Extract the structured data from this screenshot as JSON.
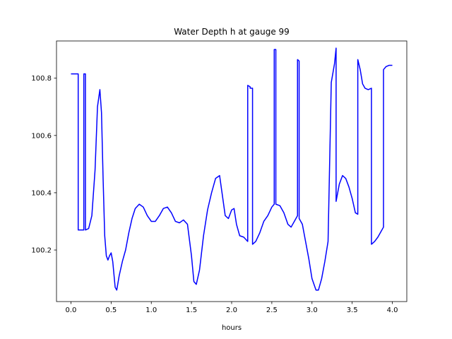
{
  "chart_data": {
    "type": "line",
    "title": "Water Depth h at gauge 99",
    "xlabel": "hours",
    "ylabel": "",
    "xlim": [
      -0.18,
      4.18
    ],
    "ylim": [
      100.02,
      100.93
    ],
    "xticks": [
      0.0,
      0.5,
      1.0,
      1.5,
      2.0,
      2.5,
      3.0,
      3.5,
      4.0
    ],
    "xtick_labels": [
      "0.0",
      "0.5",
      "1.0",
      "1.5",
      "2.0",
      "2.5",
      "3.0",
      "3.5",
      "4.0"
    ],
    "yticks": [
      100.2,
      100.4,
      100.6,
      100.8
    ],
    "ytick_labels": [
      "100.2",
      "100.4",
      "100.6",
      "100.8"
    ],
    "grid": false,
    "series": [
      {
        "color": "#0000ff",
        "x": [
          0.0,
          0.09,
          0.09,
          0.16,
          0.16,
          0.18,
          0.18,
          0.22,
          0.26,
          0.3,
          0.33,
          0.36,
          0.38,
          0.4,
          0.42,
          0.44,
          0.46,
          0.48,
          0.5,
          0.52,
          0.55,
          0.57,
          0.6,
          0.64,
          0.68,
          0.72,
          0.76,
          0.8,
          0.85,
          0.9,
          0.95,
          1.0,
          1.05,
          1.1,
          1.15,
          1.2,
          1.25,
          1.3,
          1.35,
          1.4,
          1.45,
          1.5,
          1.53,
          1.56,
          1.6,
          1.65,
          1.7,
          1.75,
          1.8,
          1.85,
          1.88,
          1.92,
          1.96,
          2.0,
          2.03,
          2.06,
          2.1,
          2.15,
          2.2,
          2.2,
          2.23,
          2.23,
          2.26,
          2.26,
          2.3,
          2.35,
          2.4,
          2.45,
          2.5,
          2.53,
          2.53,
          2.54,
          2.55,
          2.55,
          2.6,
          2.65,
          2.7,
          2.74,
          2.78,
          2.82,
          2.82,
          2.84,
          2.84,
          2.88,
          2.92,
          2.96,
          3.0,
          3.05,
          3.08,
          3.12,
          3.16,
          3.2,
          3.24,
          3.24,
          3.28,
          3.3,
          3.3,
          3.34,
          3.38,
          3.42,
          3.46,
          3.5,
          3.54,
          3.57,
          3.57,
          3.6,
          3.63,
          3.66,
          3.7,
          3.74,
          3.74,
          3.78,
          3.82,
          3.86,
          3.89,
          3.89,
          3.92,
          3.96,
          4.0
        ],
        "y": [
          100.815,
          100.815,
          100.27,
          100.27,
          100.815,
          100.815,
          100.27,
          100.275,
          100.32,
          100.48,
          100.7,
          100.76,
          100.68,
          100.45,
          100.25,
          100.18,
          100.165,
          100.18,
          100.19,
          100.16,
          100.07,
          100.06,
          100.11,
          100.16,
          100.2,
          100.26,
          100.31,
          100.345,
          100.36,
          100.35,
          100.32,
          100.3,
          100.3,
          100.32,
          100.345,
          100.35,
          100.33,
          100.3,
          100.295,
          100.305,
          100.29,
          100.18,
          100.09,
          100.08,
          100.13,
          100.25,
          100.34,
          100.4,
          100.45,
          100.46,
          100.4,
          100.32,
          100.31,
          100.34,
          100.345,
          100.29,
          100.25,
          100.245,
          100.23,
          100.775,
          100.77,
          100.765,
          100.765,
          100.22,
          100.23,
          100.26,
          100.3,
          100.32,
          100.35,
          100.36,
          100.9,
          100.9,
          100.9,
          100.36,
          100.355,
          100.33,
          100.29,
          100.28,
          100.3,
          100.32,
          100.865,
          100.86,
          100.31,
          100.29,
          100.23,
          100.17,
          100.1,
          100.06,
          100.06,
          100.1,
          100.16,
          100.23,
          100.785,
          100.785,
          100.85,
          100.905,
          100.37,
          100.43,
          100.46,
          100.45,
          100.42,
          100.38,
          100.33,
          100.325,
          100.865,
          100.83,
          100.78,
          100.765,
          100.76,
          100.765,
          100.22,
          100.23,
          100.245,
          100.265,
          100.28,
          100.83,
          100.84,
          100.845,
          100.845
        ]
      }
    ]
  }
}
